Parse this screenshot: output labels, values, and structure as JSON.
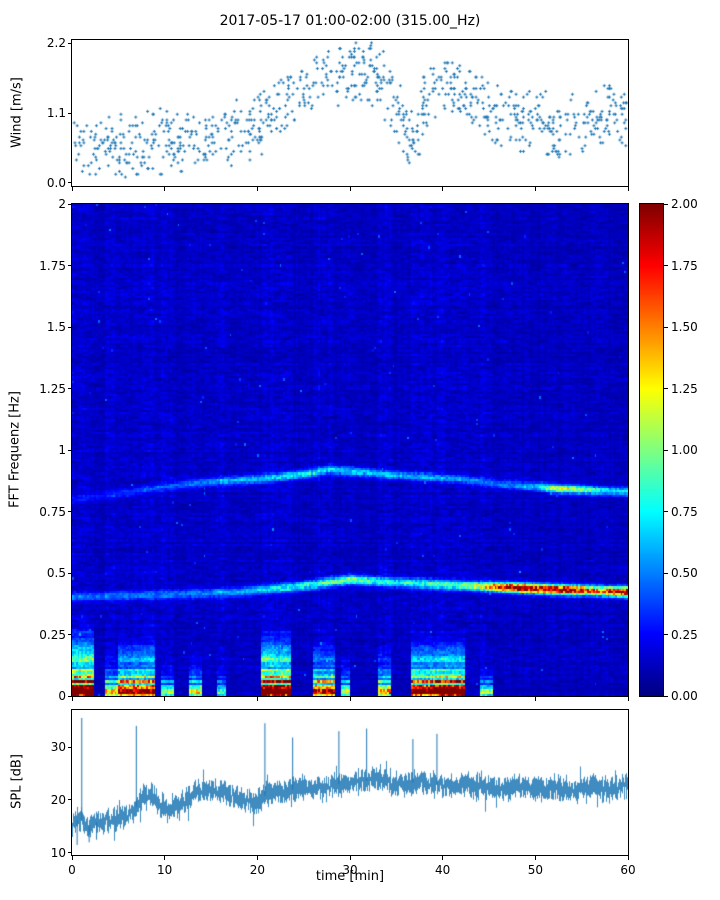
{
  "title": "2017-05-17 01:00-02:00 (315.00_Hz)",
  "colors": {
    "series": "#1f77b4",
    "axis": "#000000",
    "background": "#ffffff"
  },
  "chart_data": [
    {
      "type": "scatter",
      "name": "wind",
      "ylabel": "Wind [m/s]",
      "xlim": [
        0,
        60
      ],
      "ylim": [
        -0.05,
        2.25
      ],
      "yticks": [
        0.0,
        1.1,
        2.2
      ],
      "ytick_labels": [
        "0.0",
        "1.1",
        "2.2"
      ],
      "marker": "+",
      "marker_color": "#1f77b4",
      "n_points": 880,
      "quantize": 0.045,
      "seed": 42,
      "envelope": [
        [
          0,
          0.07,
          1.0
        ],
        [
          4,
          0.07,
          1.05
        ],
        [
          8,
          0.1,
          1.15
        ],
        [
          12,
          0.12,
          1.2
        ],
        [
          16,
          0.15,
          1.25
        ],
        [
          19,
          0.3,
          1.35
        ],
        [
          21,
          0.5,
          1.55
        ],
        [
          23,
          0.8,
          1.75
        ],
        [
          25,
          1.0,
          1.95
        ],
        [
          27,
          1.1,
          2.05
        ],
        [
          29,
          1.2,
          2.15
        ],
        [
          31,
          1.25,
          2.22
        ],
        [
          33,
          1.15,
          2.2
        ],
        [
          35,
          0.7,
          2.05
        ],
        [
          36.5,
          0.15,
          1.1
        ],
        [
          37.5,
          0.3,
          1.5
        ],
        [
          38.5,
          0.9,
          1.95
        ],
        [
          40,
          1.05,
          2.0
        ],
        [
          42,
          0.95,
          1.9
        ],
        [
          44,
          0.8,
          1.75
        ],
        [
          46,
          0.55,
          1.6
        ],
        [
          48,
          0.45,
          1.5
        ],
        [
          50,
          0.5,
          1.5
        ],
        [
          52,
          0.35,
          1.4
        ],
        [
          54,
          0.45,
          1.45
        ],
        [
          56,
          0.35,
          1.5
        ],
        [
          58,
          0.5,
          1.65
        ],
        [
          60,
          0.55,
          1.6
        ]
      ]
    },
    {
      "type": "heatmap",
      "name": "spectrogram",
      "ylabel": "FFT Frequenz [Hz]",
      "xlim": [
        0,
        60
      ],
      "ylim": [
        0,
        2
      ],
      "yticks": [
        0,
        0.25,
        0.5,
        0.75,
        1,
        1.25,
        1.5,
        1.75,
        2
      ],
      "ytick_labels": [
        "0",
        "0.25",
        "0.5",
        "0.75",
        "1",
        "1.25",
        "1.5",
        "1.75",
        "2"
      ],
      "clim": [
        0,
        2
      ],
      "colormap": "jet",
      "seed": 7,
      "grid": {
        "nx": 300,
        "ny": 220
      },
      "background": 0.04,
      "noise": 0.16,
      "lines": [
        {
          "width": 0.013,
          "freq": [
            [
              0,
              0.4
            ],
            [
              10,
              0.41
            ],
            [
              18,
              0.42
            ],
            [
              24,
              0.44
            ],
            [
              30,
              0.47
            ],
            [
              34,
              0.46
            ],
            [
              40,
              0.45
            ],
            [
              46,
              0.44
            ],
            [
              52,
              0.43
            ],
            [
              60,
              0.42
            ]
          ],
          "amp": [
            [
              0,
              0.3
            ],
            [
              8,
              0.35
            ],
            [
              14,
              0.4
            ],
            [
              18,
              0.5
            ],
            [
              22,
              0.6
            ],
            [
              26,
              0.75
            ],
            [
              30,
              0.85
            ],
            [
              34,
              0.7
            ],
            [
              38,
              0.7
            ],
            [
              41,
              0.8
            ],
            [
              43,
              0.9
            ],
            [
              45,
              1.3
            ],
            [
              47,
              1.8
            ],
            [
              49,
              2.0
            ],
            [
              51,
              1.8
            ],
            [
              53,
              2.0
            ],
            [
              55,
              1.7
            ],
            [
              57,
              1.4
            ],
            [
              58.5,
              1.8
            ],
            [
              60,
              2.0
            ]
          ]
        },
        {
          "width": 0.012,
          "freq": [
            [
              0,
              0.8
            ],
            [
              5,
              0.82
            ],
            [
              10,
              0.85
            ],
            [
              15,
              0.87
            ],
            [
              20,
              0.88
            ],
            [
              25,
              0.9
            ],
            [
              28,
              0.92
            ],
            [
              31,
              0.91
            ],
            [
              34,
              0.9
            ],
            [
              38,
              0.89
            ],
            [
              42,
              0.88
            ],
            [
              46,
              0.86
            ],
            [
              50,
              0.85
            ],
            [
              53,
              0.84
            ],
            [
              60,
              0.83
            ]
          ],
          "amp": [
            [
              0,
              0.12
            ],
            [
              5,
              0.18
            ],
            [
              10,
              0.28
            ],
            [
              15,
              0.4
            ],
            [
              18,
              0.5
            ],
            [
              22,
              0.55
            ],
            [
              26,
              0.6
            ],
            [
              30,
              0.55
            ],
            [
              34,
              0.5
            ],
            [
              38,
              0.45
            ],
            [
              42,
              0.4
            ],
            [
              46,
              0.35
            ],
            [
              50,
              0.5
            ],
            [
              52,
              1.0
            ],
            [
              54,
              1.1
            ],
            [
              56,
              0.8
            ],
            [
              58,
              0.55
            ],
            [
              60,
              0.6
            ]
          ]
        }
      ],
      "bursts": [
        [
          0,
          2.3,
          0.36,
          2.3
        ],
        [
          3.6,
          5,
          0.2,
          1.1
        ],
        [
          5,
          9,
          0.3,
          1.7
        ],
        [
          9.6,
          11,
          0.16,
          0.8
        ],
        [
          12.6,
          14,
          0.2,
          1.0
        ],
        [
          15.6,
          16.6,
          0.15,
          0.7
        ],
        [
          20.4,
          23.6,
          0.34,
          2.2
        ],
        [
          26,
          28.4,
          0.28,
          1.5
        ],
        [
          29,
          30,
          0.2,
          0.9
        ],
        [
          33,
          34.4,
          0.24,
          1.2
        ],
        [
          36.6,
          39,
          0.3,
          1.9
        ],
        [
          39,
          42.4,
          0.3,
          2.1
        ],
        [
          44,
          45.4,
          0.16,
          0.8
        ]
      ],
      "colorbar": {
        "ticks": [
          0,
          0.25,
          0.5,
          0.75,
          1,
          1.25,
          1.5,
          1.75,
          2
        ],
        "labels": [
          "0.00",
          "0.25",
          "0.50",
          "0.75",
          "1.00",
          "1.25",
          "1.50",
          "1.75",
          "2.00"
        ]
      }
    },
    {
      "type": "line",
      "name": "spl",
      "ylabel": "SPL [dB]",
      "xlabel": "time [min]",
      "xlim": [
        0,
        60
      ],
      "ylim": [
        9.6,
        37
      ],
      "yticks": [
        10,
        20,
        30
      ],
      "ytick_labels": [
        "10",
        "20",
        "30"
      ],
      "xticks": [
        0,
        10,
        20,
        30,
        40,
        50,
        60
      ],
      "xtick_labels": [
        "0",
        "10",
        "20",
        "30",
        "40",
        "50",
        "60"
      ],
      "line_color": "#1f77b4",
      "seed": 99,
      "noise_amp": 1.9,
      "mean": [
        [
          0,
          15.5
        ],
        [
          0.8,
          16.5
        ],
        [
          1.5,
          15
        ],
        [
          3,
          16
        ],
        [
          5,
          16.5
        ],
        [
          6.5,
          17.5
        ],
        [
          7.5,
          20.5
        ],
        [
          8.5,
          21
        ],
        [
          9.5,
          19
        ],
        [
          10.5,
          18
        ],
        [
          12,
          19.5
        ],
        [
          13.5,
          21.5
        ],
        [
          15,
          22
        ],
        [
          16.5,
          21.5
        ],
        [
          18,
          20
        ],
        [
          19.5,
          19.5
        ],
        [
          21,
          21
        ],
        [
          22.5,
          21.5
        ],
        [
          24,
          22
        ],
        [
          25.5,
          22.5
        ],
        [
          27,
          22
        ],
        [
          28.5,
          23
        ],
        [
          30,
          23
        ],
        [
          31.5,
          23.5
        ],
        [
          33,
          24
        ],
        [
          34.5,
          23
        ],
        [
          36,
          23
        ],
        [
          37.5,
          23.5
        ],
        [
          39,
          23
        ],
        [
          40.5,
          22.5
        ],
        [
          42,
          23
        ],
        [
          44,
          22.5
        ],
        [
          46,
          22
        ],
        [
          48,
          22.5
        ],
        [
          50,
          22
        ],
        [
          52,
          22.5
        ],
        [
          54,
          22
        ],
        [
          56,
          22.5
        ],
        [
          58,
          22
        ],
        [
          60,
          22.8
        ]
      ],
      "spikes": [
        [
          1.0,
          35.5
        ],
        [
          6.9,
          34
        ],
        [
          20.8,
          34.5
        ],
        [
          23.8,
          31.8
        ],
        [
          28.8,
          33
        ],
        [
          31.8,
          33.5
        ],
        [
          36.8,
          31.5
        ],
        [
          39.4,
          32.5
        ]
      ],
      "dips": [
        [
          0.5,
          11.5
        ],
        [
          1.8,
          12
        ],
        [
          2.6,
          12.5
        ]
      ]
    }
  ]
}
